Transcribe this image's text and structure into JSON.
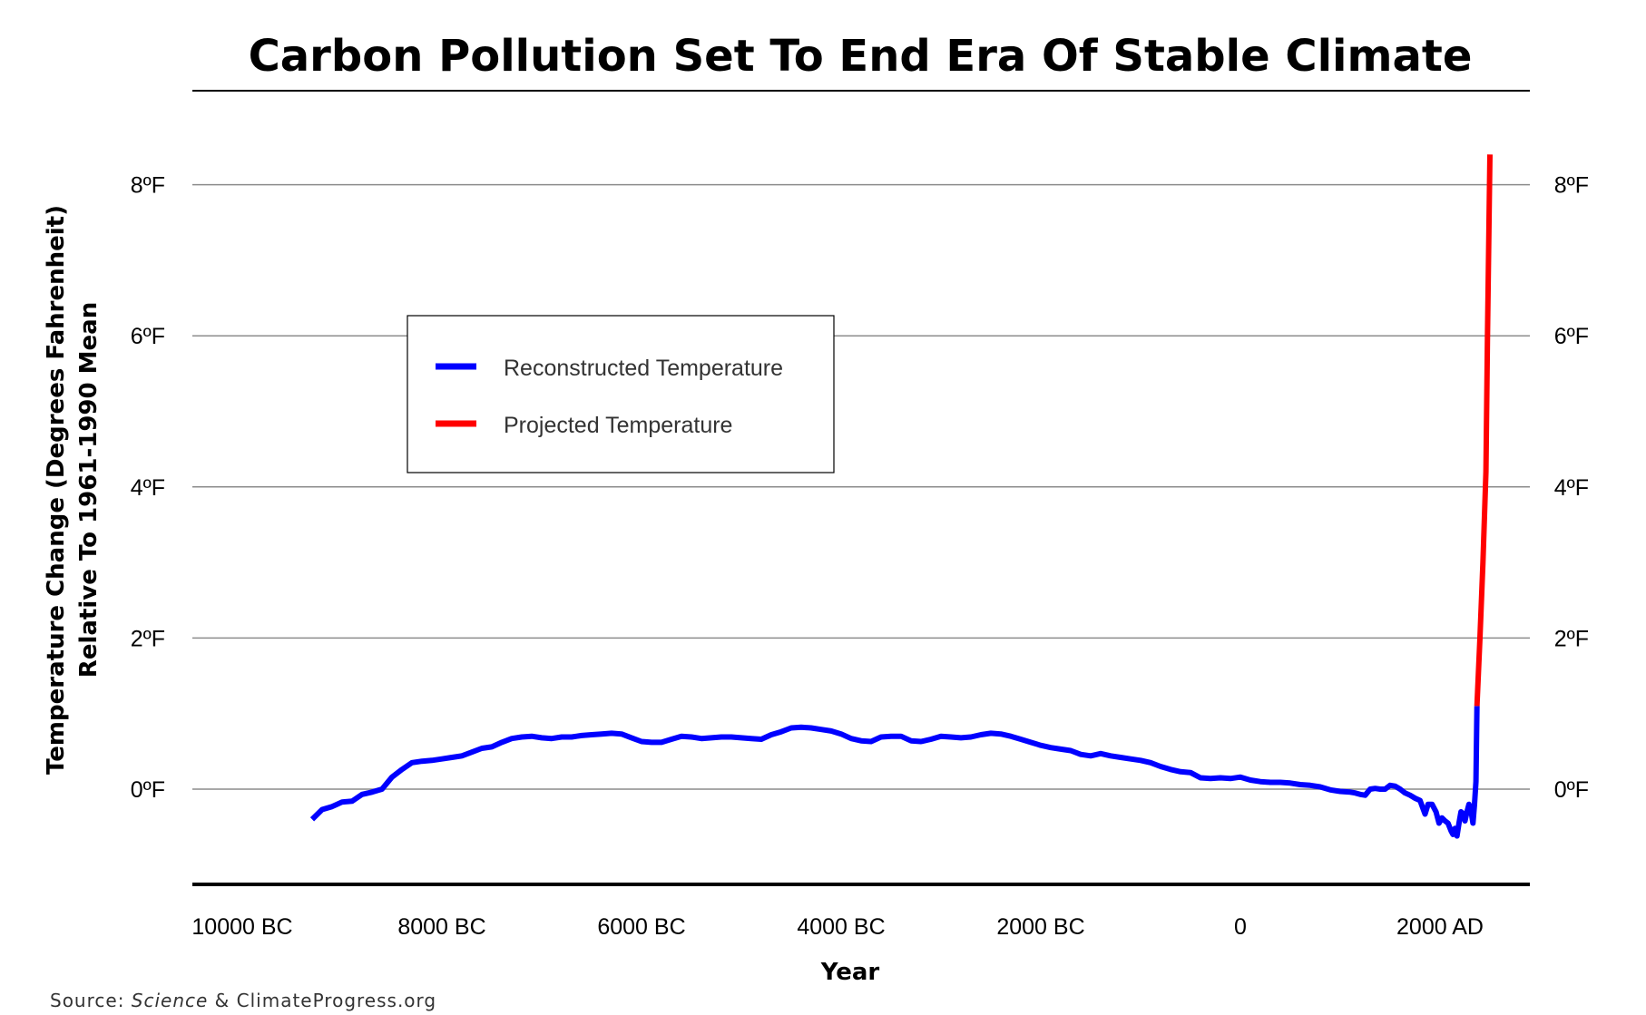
{
  "chart_data": {
    "type": "line",
    "title": "Carbon Pollution Set To End Era Of Stable Climate",
    "xlabel": "Year",
    "ylabel_line1": "Temperature Change (Degrees Fahrenheit)",
    "ylabel_line2": "Relative To 1961-1990 Mean",
    "x_ticks": [
      {
        "value": -10000,
        "label": "10000 BC"
      },
      {
        "value": -8000,
        "label": "8000 BC"
      },
      {
        "value": -6000,
        "label": "6000 BC"
      },
      {
        "value": -4000,
        "label": "4000 BC"
      },
      {
        "value": -2000,
        "label": "2000 BC"
      },
      {
        "value": 0,
        "label": "0"
      },
      {
        "value": 2000,
        "label": "2000 AD"
      }
    ],
    "y_ticks": [
      {
        "value": 0,
        "label": "0ºF"
      },
      {
        "value": 2,
        "label": "2ºF"
      },
      {
        "value": 4,
        "label": "4ºF"
      },
      {
        "value": 6,
        "label": "6ºF"
      },
      {
        "value": 8,
        "label": "8ºF"
      }
    ],
    "xlim": [
      -10500,
      2900
    ],
    "ylim": [
      -1.3,
      9.2
    ],
    "grid": true,
    "legend_position": "upper-left",
    "series": [
      {
        "name": "Reconstructed Temperature",
        "color": "#0000ff",
        "points": [
          [
            -9300,
            -0.4
          ],
          [
            -9200,
            -0.27
          ],
          [
            -9100,
            -0.23
          ],
          [
            -9000,
            -0.17
          ],
          [
            -8900,
            -0.16
          ],
          [
            -8800,
            -0.07
          ],
          [
            -8700,
            -0.04
          ],
          [
            -8600,
            0.0
          ],
          [
            -8500,
            0.16
          ],
          [
            -8400,
            0.26
          ],
          [
            -8300,
            0.35
          ],
          [
            -8200,
            0.37
          ],
          [
            -8100,
            0.38
          ],
          [
            -8000,
            0.4
          ],
          [
            -7900,
            0.42
          ],
          [
            -7800,
            0.44
          ],
          [
            -7700,
            0.49
          ],
          [
            -7600,
            0.54
          ],
          [
            -7500,
            0.56
          ],
          [
            -7400,
            0.62
          ],
          [
            -7300,
            0.67
          ],
          [
            -7200,
            0.69
          ],
          [
            -7100,
            0.7
          ],
          [
            -7000,
            0.68
          ],
          [
            -6900,
            0.67
          ],
          [
            -6800,
            0.69
          ],
          [
            -6700,
            0.69
          ],
          [
            -6600,
            0.71
          ],
          [
            -6500,
            0.72
          ],
          [
            -6400,
            0.73
          ],
          [
            -6300,
            0.74
          ],
          [
            -6200,
            0.73
          ],
          [
            -6100,
            0.68
          ],
          [
            -6000,
            0.63
          ],
          [
            -5900,
            0.62
          ],
          [
            -5800,
            0.62
          ],
          [
            -5700,
            0.66
          ],
          [
            -5600,
            0.7
          ],
          [
            -5500,
            0.69
          ],
          [
            -5400,
            0.67
          ],
          [
            -5300,
            0.68
          ],
          [
            -5200,
            0.69
          ],
          [
            -5100,
            0.69
          ],
          [
            -5000,
            0.68
          ],
          [
            -4900,
            0.67
          ],
          [
            -4800,
            0.66
          ],
          [
            -4700,
            0.72
          ],
          [
            -4600,
            0.76
          ],
          [
            -4500,
            0.81
          ],
          [
            -4400,
            0.82
          ],
          [
            -4300,
            0.81
          ],
          [
            -4200,
            0.79
          ],
          [
            -4100,
            0.77
          ],
          [
            -4000,
            0.73
          ],
          [
            -3900,
            0.67
          ],
          [
            -3800,
            0.64
          ],
          [
            -3700,
            0.63
          ],
          [
            -3600,
            0.69
          ],
          [
            -3500,
            0.7
          ],
          [
            -3400,
            0.7
          ],
          [
            -3300,
            0.64
          ],
          [
            -3200,
            0.63
          ],
          [
            -3100,
            0.66
          ],
          [
            -3000,
            0.7
          ],
          [
            -2900,
            0.69
          ],
          [
            -2800,
            0.68
          ],
          [
            -2700,
            0.69
          ],
          [
            -2600,
            0.72
          ],
          [
            -2500,
            0.74
          ],
          [
            -2400,
            0.73
          ],
          [
            -2300,
            0.7
          ],
          [
            -2200,
            0.66
          ],
          [
            -2100,
            0.62
          ],
          [
            -2000,
            0.58
          ],
          [
            -1900,
            0.55
          ],
          [
            -1800,
            0.53
          ],
          [
            -1700,
            0.51
          ],
          [
            -1600,
            0.46
          ],
          [
            -1500,
            0.44
          ],
          [
            -1400,
            0.47
          ],
          [
            -1300,
            0.44
          ],
          [
            -1200,
            0.42
          ],
          [
            -1100,
            0.4
          ],
          [
            -1000,
            0.38
          ],
          [
            -900,
            0.35
          ],
          [
            -800,
            0.3
          ],
          [
            -700,
            0.26
          ],
          [
            -600,
            0.23
          ],
          [
            -500,
            0.22
          ],
          [
            -400,
            0.15
          ],
          [
            -300,
            0.14
          ],
          [
            -200,
            0.15
          ],
          [
            -100,
            0.14
          ],
          [
            0,
            0.16
          ],
          [
            100,
            0.12
          ],
          [
            200,
            0.1
          ],
          [
            300,
            0.09
          ],
          [
            400,
            0.09
          ],
          [
            500,
            0.08
          ],
          [
            600,
            0.06
          ],
          [
            700,
            0.05
          ],
          [
            800,
            0.03
          ],
          [
            900,
            -0.01
          ],
          [
            1000,
            -0.03
          ],
          [
            1100,
            -0.04
          ],
          [
            1150,
            -0.05
          ],
          [
            1200,
            -0.07
          ],
          [
            1250,
            -0.08
          ],
          [
            1300,
            0.0
          ],
          [
            1350,
            0.01
          ],
          [
            1400,
            0.0
          ],
          [
            1450,
            0.0
          ],
          [
            1500,
            0.05
          ],
          [
            1550,
            0.04
          ],
          [
            1600,
            0.0
          ],
          [
            1650,
            -0.05
          ],
          [
            1700,
            -0.08
          ],
          [
            1750,
            -0.12
          ],
          [
            1800,
            -0.15
          ],
          [
            1850,
            -0.33
          ],
          [
            1880,
            -0.2
          ],
          [
            1920,
            -0.2
          ],
          [
            1960,
            -0.3
          ],
          [
            1990,
            -0.45
          ],
          [
            2020,
            -0.38
          ],
          [
            2050,
            -0.42
          ],
          [
            2080,
            -0.45
          ],
          [
            2110,
            -0.55
          ],
          [
            2130,
            -0.6
          ],
          [
            2150,
            -0.52
          ],
          [
            2170,
            -0.62
          ],
          [
            2190,
            -0.45
          ],
          [
            2210,
            -0.3
          ],
          [
            2230,
            -0.32
          ],
          [
            2250,
            -0.42
          ],
          [
            2270,
            -0.3
          ],
          [
            2290,
            -0.2
          ],
          [
            2310,
            -0.28
          ],
          [
            2330,
            -0.45
          ],
          [
            2345,
            -0.2
          ],
          [
            2360,
            0.1
          ],
          [
            2370,
            1.1
          ]
        ]
      },
      {
        "name": "Projected Temperature",
        "color": "#ff0000",
        "points": [
          [
            2370,
            1.1
          ],
          [
            2400,
            2.0
          ],
          [
            2430,
            3.0
          ],
          [
            2460,
            4.2
          ],
          [
            2475,
            6.0
          ],
          [
            2500,
            8.4
          ]
        ]
      }
    ]
  },
  "footer": {
    "source_prefix": "Source: ",
    "source_italic": "Science",
    "source_suffix": " & ClimateProgress.org"
  }
}
